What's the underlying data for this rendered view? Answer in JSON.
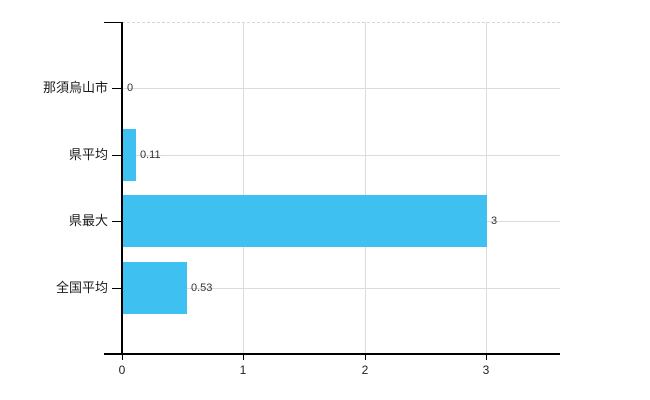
{
  "chart": {
    "bar_color": "#3EC1F0",
    "axis_color": "#000000",
    "grid_color": "#dcdcdc",
    "top_border_color": "#d6d6d6",
    "category_label_color": "#1a1a1a",
    "value_label_color": "#333333",
    "background_color": "#ffffff"
  },
  "chart_data": {
    "type": "bar",
    "orientation": "horizontal",
    "title": "",
    "xlabel": "",
    "ylabel": "",
    "categories": [
      "那須烏山市",
      "県平均",
      "県最大",
      "全国平均"
    ],
    "values": [
      0,
      0.11,
      3,
      0.53
    ],
    "value_labels": [
      "0",
      "0.11",
      "3",
      "0.53"
    ],
    "x_tick_labels": [
      "0",
      "1",
      "2",
      "3"
    ],
    "x_tick_values": [
      0,
      1,
      2,
      3
    ],
    "xlim": [
      0,
      3.61
    ],
    "grid": true,
    "legend": false
  }
}
